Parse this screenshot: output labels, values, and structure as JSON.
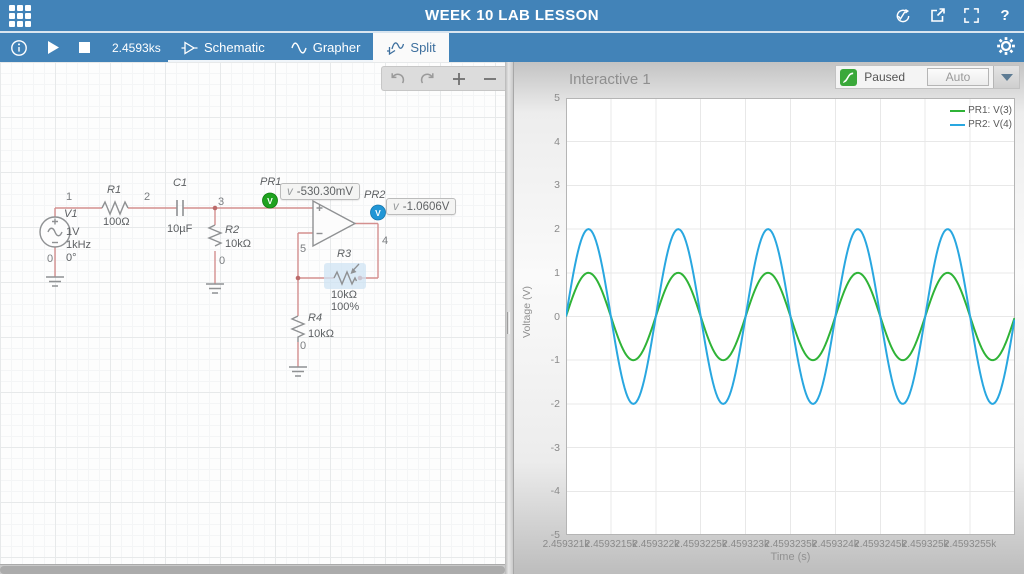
{
  "topbar": {
    "title": "WEEK 10 LAB LESSON",
    "help_label": "?"
  },
  "toolbar": {
    "time": "2.4593ks",
    "tabs": {
      "schematic": "Schematic",
      "grapher": "Grapher",
      "split": "Split"
    }
  },
  "schematic": {
    "nodes": {
      "n1": "1",
      "n2": "2",
      "n3": "3",
      "n4": "4",
      "n5": "5",
      "v1_gnd": "0",
      "r2_gnd": "0",
      "r4_gnd": "0"
    },
    "v1": {
      "des": "V1",
      "val1": "1V",
      "val2": "1kHz",
      "val3": "0°"
    },
    "r1": {
      "des": "R1",
      "val": "100Ω"
    },
    "c1": {
      "des": "C1",
      "val": "10µF"
    },
    "r2": {
      "des": "R2",
      "val": "10kΩ"
    },
    "r3": {
      "des": "R3",
      "val": "10kΩ",
      "pct": "100%"
    },
    "r4": {
      "des": "R4",
      "val": "10kΩ"
    },
    "pr1": {
      "des": "PR1",
      "prefix": "v",
      "value": "-530.30mV"
    },
    "pr2": {
      "des": "PR2",
      "prefix": "v",
      "value": "-1.0606V"
    }
  },
  "grapher": {
    "title": "Interactive 1",
    "paused_label": "Paused",
    "range_mode": "Auto"
  },
  "chart_data": {
    "type": "line",
    "title": "Interactive 1",
    "xlabel": "Time (s)",
    "ylabel": "Voltage (V)",
    "ylim": [
      -5,
      5
    ],
    "grid": true,
    "legend_position": "top-right",
    "y_ticks": [
      "5",
      "4",
      "3",
      "2",
      "1",
      "0",
      "-1",
      "-2",
      "-3",
      "-4",
      "-5"
    ],
    "x_ticks": [
      "2.459321k",
      "2.4593215k",
      "2.459322k",
      "2.4593225k",
      "2.459323k",
      "2.4593235k",
      "2.459324k",
      "2.4593245k",
      "2.459325k",
      "2.4593255k"
    ],
    "cycles_visible": 5,
    "series": [
      {
        "name": "PR1: V(3)",
        "color": "#2fb337",
        "amplitude_v": 1,
        "phase_deg": 0
      },
      {
        "name": "PR2: V(4)",
        "color": "#29a7e0",
        "amplitude_v": 2,
        "phase_deg": 0
      }
    ]
  }
}
